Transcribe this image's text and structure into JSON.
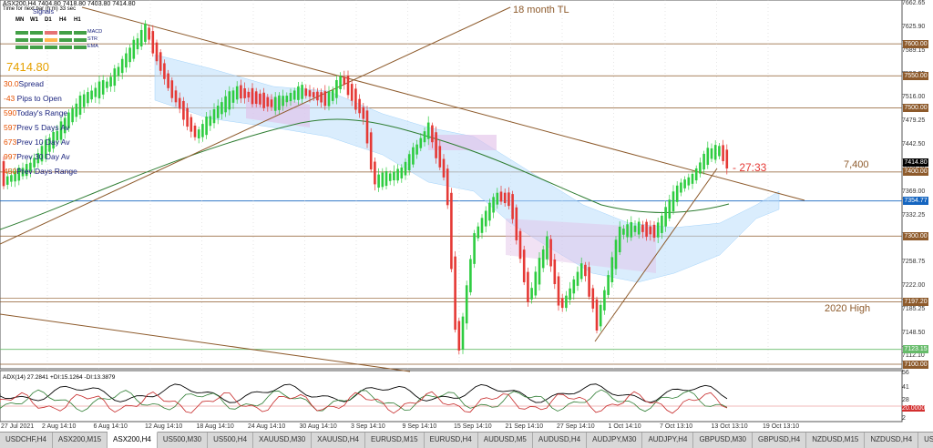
{
  "chart": {
    "header": "ASX200,H4  7404.80 7418.80 7403.80 7414.80",
    "timer": "Time for next bar (h:m) 33 sec",
    "signals_label": "Signals",
    "timeframes": [
      "MN",
      "W1",
      "D1",
      "H4",
      "H1"
    ],
    "indicator_rows": [
      "MACD",
      "STR",
      "EMA"
    ],
    "current_price": "7414.80",
    "stats": [
      {
        "num": "30.0",
        "label": "Spread"
      },
      {
        "num": "-43",
        "label": "Pips to Open"
      },
      {
        "num": "590",
        "label": "Today's Range"
      },
      {
        "num": "597",
        "label": "Prev 5 Days Av"
      },
      {
        "num": "673",
        "label": "Prev 10 Day Av"
      },
      {
        "num": "997",
        "label": "Prev 30 Day Av"
      },
      {
        "num": "450",
        "label": "Prev Days Range"
      }
    ],
    "annotations": {
      "tl_18_month": "18 month TL",
      "level_7400": "7,400",
      "high_2020": "2020 High",
      "countdown": "- 27:33"
    },
    "adx_label": "ADX(14) 27.2841 +DI:15.1264 -DI:13.3879",
    "right_axis": [
      "7662.65",
      "7625.90",
      "7600.00",
      "7589.15",
      "7552.05",
      "7550.00",
      "7516.00",
      "7500.00",
      "7479.25",
      "7442.50",
      "7414.80",
      "7405.75",
      "7400.00",
      "7369.00",
      "7354.77",
      "7332.25",
      "7300.00",
      "7258.75",
      "7222.00",
      "7197.20",
      "7185.25",
      "7148.50",
      "7123.15",
      "7112.10",
      "7100.00"
    ],
    "price_boxes": [
      {
        "label": "7600.00",
        "color": "#8d5a2b"
      },
      {
        "label": "7550.00",
        "color": "#8d5a2b"
      },
      {
        "label": "7500.00",
        "color": "#8d5a2b"
      },
      {
        "label": "7414.80",
        "color": "#000000"
      },
      {
        "label": "7400.00",
        "color": "#8d5a2b"
      },
      {
        "label": "7354.77",
        "color": "#1565c0"
      },
      {
        "label": "7300.00",
        "color": "#8d5a2b"
      },
      {
        "label": "7197.20",
        "color": "#8d5a2b"
      },
      {
        "label": "7123.15",
        "color": "#66bb6a"
      },
      {
        "label": "7100.00",
        "color": "#8d5a2b"
      }
    ],
    "adx_axis": [
      "56",
      "41",
      "28",
      "20.0000",
      "2"
    ],
    "dates": [
      "27 Jul 2021",
      "2 Aug 14:10",
      "6 Aug 14:10",
      "12 Aug 14:10",
      "18 Aug 14:10",
      "24 Aug 14:10",
      "30 Aug 14:10",
      "3 Sep 14:10",
      "9 Sep 14:10",
      "15 Sep 14:10",
      "21 Sep 14:10",
      "27 Sep 14:10",
      "1 Oct 14:10",
      "7 Oct 13:10",
      "13 Oct 13:10",
      "19 Oct 13:10"
    ]
  },
  "tabs": [
    "USDCHF,H4",
    "ASX200,M15",
    "ASX200,H4",
    "US500,M30",
    "US500,H4",
    "XAUUSD,M30",
    "XAUUSD,H4",
    "EURUSD,M15",
    "EURUSD,H4",
    "AUDUSD,M5",
    "AUDUSD,H4",
    "AUDJPY,M30",
    "AUDJPY,H4",
    "GBPUSD,M30",
    "GBPUSD,H4",
    "NZDUSD,M15",
    "NZDUSD,H4",
    "USD"
  ],
  "active_tab": "ASX200,H4",
  "colors": {
    "bull": "#2ecc40",
    "bear": "#e53935",
    "trendline": "#8d5a2b",
    "cloud": "#bbdefb",
    "cloud_bear": "#e1bee7",
    "ema": "#2e7d32"
  }
}
